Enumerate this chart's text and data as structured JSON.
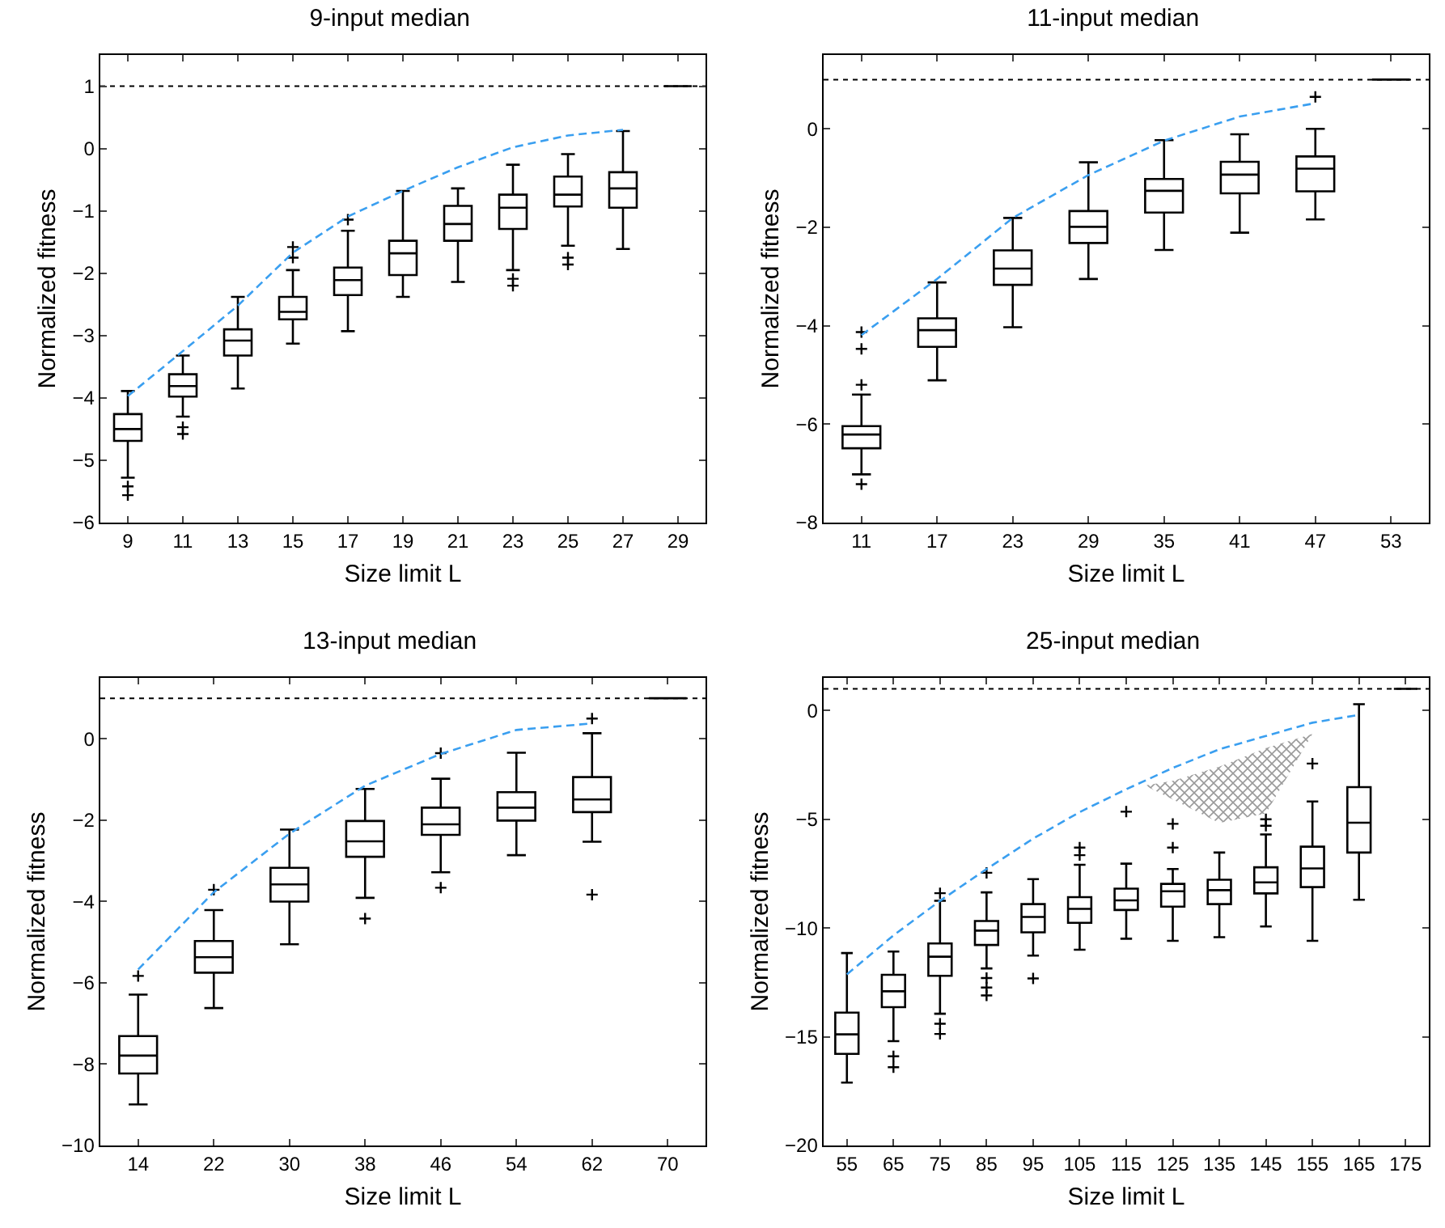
{
  "chart_data": [
    {
      "type": "box",
      "title": "9-input median",
      "xlabel": "Size limit L",
      "ylabel": "Normalized fitness",
      "categories": [
        "9",
        "11",
        "13",
        "15",
        "17",
        "19",
        "21",
        "23",
        "25",
        "27",
        "29"
      ],
      "ylim": [
        -6,
        1.5
      ],
      "yticks": [
        -6,
        -5,
        -4,
        -3,
        -2,
        -1,
        0,
        1
      ],
      "grid": false,
      "ref_lines": [
        {
          "axis": "y",
          "value": 1,
          "color": "#000000",
          "line_style": "dotted"
        }
      ],
      "series": [
        {
          "color": "#000000",
          "boxes": [
            {
              "low": -5.28,
              "q1": -4.69,
              "median": -4.5,
              "q3": -4.26,
              "high": -3.89,
              "outliers": [
                -5.42,
                -5.56
              ]
            },
            {
              "low": -4.3,
              "q1": -3.98,
              "median": -3.81,
              "q3": -3.62,
              "high": -3.32,
              "outliers": [
                -4.47,
                -4.58
              ]
            },
            {
              "low": -3.85,
              "q1": -3.32,
              "median": -3.08,
              "q3": -2.9,
              "high": -2.38
            },
            {
              "low": -3.13,
              "q1": -2.74,
              "median": -2.62,
              "q3": -2.38,
              "high": -1.95,
              "outliers": [
                -1.58,
                -1.75
              ]
            },
            {
              "low": -2.93,
              "q1": -2.35,
              "median": -2.11,
              "q3": -1.91,
              "high": -1.32,
              "outliers": [
                -1.14
              ]
            },
            {
              "low": -2.38,
              "q1": -2.03,
              "median": -1.68,
              "q3": -1.48,
              "high": -0.68
            },
            {
              "low": -2.14,
              "q1": -1.48,
              "median": -1.21,
              "q3": -0.92,
              "high": -0.64
            },
            {
              "low": -1.95,
              "q1": -1.29,
              "median": -0.95,
              "q3": -0.74,
              "high": -0.26,
              "outliers": [
                -2.09,
                -2.2
              ]
            },
            {
              "low": -1.56,
              "q1": -0.93,
              "median": -0.74,
              "q3": -0.45,
              "high": -0.09,
              "outliers": [
                -1.75,
                -1.86
              ]
            },
            {
              "low": -1.61,
              "q1": -0.95,
              "median": -0.64,
              "q3": -0.38,
              "high": 0.28
            },
            {
              "low": 1,
              "q1": 1,
              "median": 1,
              "q3": 1,
              "high": 1
            }
          ]
        },
        {
          "type": "line",
          "color": "#3a9ff0",
          "line_style": "dashed",
          "marker": "none",
          "values": [
            -3.97,
            -3.25,
            -2.52,
            -1.67,
            -1.09,
            -0.68,
            -0.3,
            0.02,
            0.21,
            0.3,
            null
          ]
        }
      ]
    },
    {
      "type": "box",
      "title": "11-input median",
      "xlabel": "Size limit L",
      "ylabel": "Normalized fitness",
      "categories": [
        "11",
        "17",
        "23",
        "29",
        "35",
        "41",
        "47",
        "53"
      ],
      "ylim": [
        -8,
        1.5
      ],
      "yticks": [
        -8,
        -6,
        -4,
        -2,
        0
      ],
      "grid": false,
      "ref_lines": [
        {
          "axis": "y",
          "value": 1,
          "color": "#000000",
          "line_style": "dotted"
        }
      ],
      "series": [
        {
          "color": "#000000",
          "boxes": [
            {
              "low": -7.02,
              "q1": -6.49,
              "median": -6.21,
              "q3": -6.04,
              "high": -5.4,
              "outliers": [
                -4.13,
                -4.47,
                -5.2,
                -7.22
              ]
            },
            {
              "low": -5.11,
              "q1": -4.43,
              "median": -4.09,
              "q3": -3.85,
              "high": -3.12
            },
            {
              "low": -4.03,
              "q1": -3.17,
              "median": -2.84,
              "q3": -2.47,
              "high": -1.81
            },
            {
              "low": -3.05,
              "q1": -2.32,
              "median": -1.99,
              "q3": -1.67,
              "high": -0.68
            },
            {
              "low": -2.46,
              "q1": -1.7,
              "median": -1.26,
              "q3": -1.02,
              "high": -0.23
            },
            {
              "low": -2.11,
              "q1": -1.31,
              "median": -0.93,
              "q3": -0.67,
              "high": -0.11
            },
            {
              "low": -1.84,
              "q1": -1.27,
              "median": -0.81,
              "q3": -0.56,
              "high": 0,
              "outliers": [
                0.65
              ]
            },
            {
              "low": 1,
              "q1": 1,
              "median": 1,
              "q3": 1,
              "high": 1
            }
          ]
        },
        {
          "type": "line",
          "color": "#3a9ff0",
          "line_style": "dashed",
          "marker": "none",
          "values": [
            -4.19,
            -3.05,
            -1.81,
            -0.94,
            -0.24,
            0.25,
            0.52,
            null
          ]
        }
      ]
    },
    {
      "type": "box",
      "title": "13-input median",
      "xlabel": "Size limit L",
      "ylabel": "Normalized fitness",
      "categories": [
        "14",
        "22",
        "30",
        "38",
        "46",
        "54",
        "62",
        "70"
      ],
      "ylim": [
        -10,
        1.5
      ],
      "yticks": [
        -10,
        -8,
        -6,
        -4,
        -2,
        0
      ],
      "grid": false,
      "ref_lines": [
        {
          "axis": "y",
          "value": 1,
          "color": "#000000",
          "line_style": "dotted"
        }
      ],
      "series": [
        {
          "color": "#000000",
          "boxes": [
            {
              "low": -8.99,
              "q1": -8.23,
              "median": -7.79,
              "q3": -7.31,
              "high": -6.29,
              "outliers": [
                -5.83
              ]
            },
            {
              "low": -6.62,
              "q1": -5.75,
              "median": -5.37,
              "q3": -4.97,
              "high": -4.21,
              "outliers": [
                -3.71
              ]
            },
            {
              "low": -5.05,
              "q1": -4,
              "median": -3.58,
              "q3": -3.17,
              "high": -2.23
            },
            {
              "low": -3.91,
              "q1": -2.9,
              "median": -2.52,
              "q3": -2.02,
              "high": -1.23,
              "outliers": [
                -4.42
              ]
            },
            {
              "low": -3.28,
              "q1": -2.36,
              "median": -2.1,
              "q3": -1.69,
              "high": -0.98,
              "outliers": [
                -0.35,
                -3.66
              ]
            },
            {
              "low": -2.86,
              "q1": -2.01,
              "median": -1.69,
              "q3": -1.31,
              "high": -0.34
            },
            {
              "low": -2.53,
              "q1": -1.8,
              "median": -1.49,
              "q3": -0.94,
              "high": 0.14,
              "outliers": [
                0.5,
                -3.83
              ]
            },
            {
              "low": 1,
              "q1": 1,
              "median": 1,
              "q3": 1,
              "high": 1
            }
          ]
        },
        {
          "type": "line",
          "color": "#3a9ff0",
          "line_style": "dashed",
          "marker": "none",
          "values": [
            -5.67,
            -3.77,
            -2.33,
            -1.15,
            -0.37,
            0.22,
            0.38,
            null
          ]
        }
      ]
    },
    {
      "type": "box",
      "title": "25-input median",
      "xlabel": "Size limit L",
      "ylabel": "Normalized fitness",
      "categories": [
        "55",
        "65",
        "75",
        "85",
        "95",
        "105",
        "115",
        "125",
        "135",
        "145",
        "155",
        "165",
        "175"
      ],
      "ylim": [
        -20,
        1.5
      ],
      "yticks": [
        -20,
        -15,
        -10,
        -5,
        0
      ],
      "grid": false,
      "ref_lines": [
        {
          "axis": "y",
          "value": 1,
          "color": "#000000",
          "line_style": "dotted"
        }
      ],
      "series": [
        {
          "color": "#000000",
          "boxes": [
            {
              "low": -17.11,
              "q1": -15.79,
              "median": -14.89,
              "q3": -13.89,
              "high": -11.15
            },
            {
              "low": -15.2,
              "q1": -13.64,
              "median": -12.91,
              "q3": -12.15,
              "high": -11.08,
              "outliers": [
                -15.9,
                -16.4
              ]
            },
            {
              "low": -13.94,
              "q1": -12.2,
              "median": -11.32,
              "q3": -10.71,
              "high": -8.75,
              "outliers": [
                -8.4,
                -14.4,
                -14.87
              ]
            },
            {
              "low": -11.86,
              "q1": -10.78,
              "median": -10.12,
              "q3": -9.68,
              "high": -8.36,
              "outliers": [
                -7.46,
                -12.3,
                -12.74,
                -13.1
              ]
            },
            {
              "low": -11.27,
              "q1": -10.2,
              "median": -9.49,
              "q3": -8.9,
              "high": -7.75,
              "outliers": [
                -12.32
              ]
            },
            {
              "low": -11,
              "q1": -9.76,
              "median": -9.12,
              "q3": -8.58,
              "high": -7.09,
              "outliers": [
                -6.3,
                -6.65
              ]
            },
            {
              "low": -10.49,
              "q1": -9.17,
              "median": -8.73,
              "q3": -8.19,
              "high": -7.04,
              "outliers": [
                -4.65
              ]
            },
            {
              "low": -10.59,
              "q1": -9.02,
              "median": -8.31,
              "q3": -7.97,
              "high": -7.29,
              "outliers": [
                -5.21,
                -6.3
              ]
            },
            {
              "low": -10.42,
              "q1": -8.9,
              "median": -8.26,
              "q3": -7.78,
              "high": -6.53
            },
            {
              "low": -9.93,
              "q1": -8.41,
              "median": -7.9,
              "q3": -7.21,
              "high": -5.7,
              "outliers": [
                -5.0,
                -5.3
              ]
            },
            {
              "low": -10.59,
              "q1": -8.12,
              "median": -7.26,
              "q3": -6.26,
              "high": -4.18,
              "outliers": [
                -2.44
              ]
            },
            {
              "low": -8.7,
              "q1": -6.53,
              "median": -5.16,
              "q3": -3.52,
              "high": 0.29
            },
            {
              "low": 1,
              "q1": 1,
              "median": 1,
              "q3": 1,
              "high": 1
            }
          ]
        },
        {
          "type": "line",
          "color": "#3a9ff0",
          "line_style": "dashed",
          "marker": "none",
          "values": [
            -12.13,
            -10.34,
            -8.75,
            -7.29,
            -5.89,
            -4.67,
            -3.62,
            -2.64,
            -1.78,
            -1.17,
            -0.56,
            -0.2,
            null
          ]
        }
      ]
    }
  ]
}
